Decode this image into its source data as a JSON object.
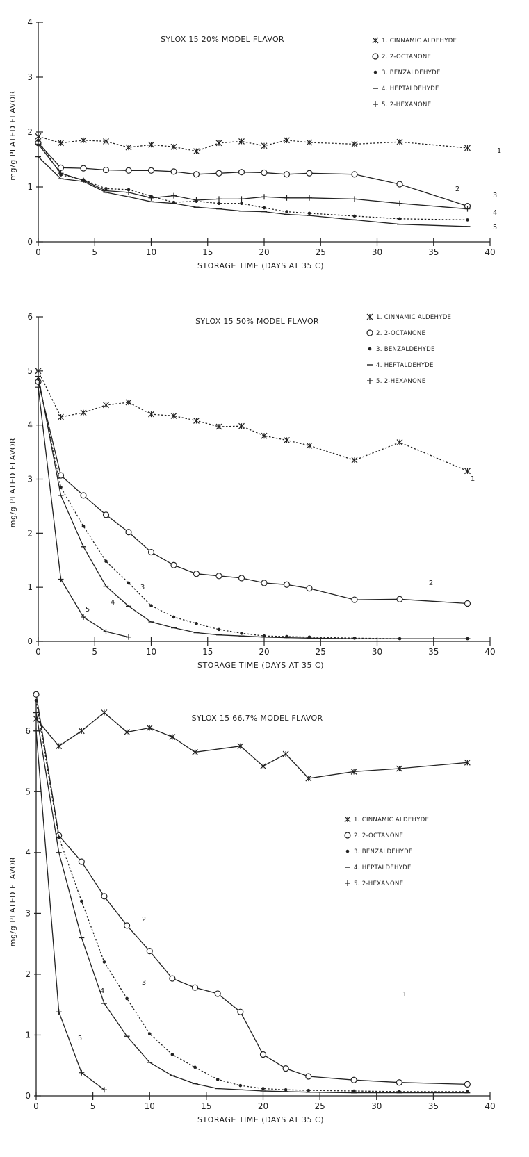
{
  "chart_data": [
    {
      "type": "line",
      "title": "SYLOX 15 20% MODEL FLAVOR",
      "xlabel": "STORAGE TIME (DAYS AT 35 C)",
      "ylabel": "mg/g PLATED FLAVOR",
      "xlim": [
        0,
        40
      ],
      "ylim": [
        0,
        4
      ],
      "xticks": [
        0,
        5,
        10,
        15,
        20,
        25,
        30,
        35,
        40
      ],
      "yticks": [
        0,
        1,
        2,
        3,
        4
      ],
      "grid": false,
      "legend_position": "top-right",
      "series": [
        {
          "name": "1. CINNAMIC ALDEHYDE",
          "marker": "*",
          "dash": "dotted",
          "label": "1",
          "x": [
            0,
            2,
            4,
            6,
            8,
            10,
            12,
            14,
            16,
            18,
            20,
            22,
            24,
            28,
            32,
            38
          ],
          "y": [
            1.92,
            1.8,
            1.85,
            1.83,
            1.72,
            1.77,
            1.73,
            1.65,
            1.8,
            1.83,
            1.75,
            1.85,
            1.81,
            1.78,
            1.82,
            1.71
          ]
        },
        {
          "name": "2. 2-OCTANONE",
          "marker": "o",
          "dash": "solid",
          "label": "2",
          "x": [
            0,
            2,
            4,
            6,
            8,
            10,
            12,
            14,
            16,
            18,
            20,
            22,
            24,
            28,
            32,
            38
          ],
          "y": [
            1.8,
            1.35,
            1.34,
            1.31,
            1.3,
            1.3,
            1.28,
            1.23,
            1.25,
            1.27,
            1.26,
            1.23,
            1.25,
            1.23,
            1.05,
            0.65
          ]
        },
        {
          "name": "3. BENZALDEHYDE",
          "marker": ".",
          "dash": "dotted",
          "label": "3",
          "x": [
            0,
            2,
            4,
            6,
            8,
            10,
            12,
            14,
            16,
            18,
            20,
            22,
            24,
            28,
            32,
            38
          ],
          "y": [
            1.85,
            1.22,
            1.13,
            0.97,
            0.95,
            0.83,
            0.72,
            0.74,
            0.7,
            0.7,
            0.62,
            0.55,
            0.52,
            0.47,
            0.42,
            0.4
          ]
        },
        {
          "name": "4. HEPTALDEHYDE",
          "marker": "-",
          "dash": "solid",
          "label": "4",
          "x": [
            0,
            2,
            4,
            6,
            8,
            10,
            12,
            14,
            16,
            18,
            20,
            22,
            24,
            28,
            32,
            38
          ],
          "y": [
            1.55,
            1.15,
            1.1,
            0.9,
            0.82,
            0.73,
            0.7,
            0.63,
            0.6,
            0.56,
            0.55,
            0.5,
            0.48,
            0.4,
            0.32,
            0.28
          ]
        },
        {
          "name": "5. 2-HEXANONE",
          "marker": "+",
          "dash": "solid",
          "label": "5",
          "x": [
            0,
            2,
            4,
            6,
            8,
            10,
            12,
            14,
            16,
            18,
            20,
            22,
            24,
            28,
            32,
            38
          ],
          "y": [
            1.78,
            1.25,
            1.12,
            0.93,
            0.9,
            0.8,
            0.84,
            0.76,
            0.78,
            0.78,
            0.82,
            0.8,
            0.8,
            0.78,
            0.7,
            0.6
          ]
        }
      ]
    },
    {
      "type": "line",
      "title": "SYLOX 15 50% MODEL FLAVOR",
      "xlabel": "STORAGE TIME (DAYS AT 35 C)",
      "ylabel": "mg/g PLATED FLAVOR",
      "xlim": [
        0,
        40
      ],
      "ylim": [
        0,
        6
      ],
      "xticks": [
        0,
        5,
        10,
        15,
        20,
        25,
        30,
        35,
        40
      ],
      "yticks": [
        0,
        1,
        2,
        3,
        4,
        5,
        6
      ],
      "grid": false,
      "legend_position": "top-right",
      "series": [
        {
          "name": "1. CINNAMIC ALDEHYDE",
          "marker": "*",
          "dash": "dotted",
          "label": "1",
          "x": [
            0,
            2,
            4,
            6,
            8,
            10,
            12,
            14,
            16,
            18,
            20,
            22,
            24,
            28,
            32,
            38
          ],
          "y": [
            5.0,
            4.15,
            4.23,
            4.37,
            4.42,
            4.2,
            4.17,
            4.08,
            3.97,
            3.98,
            3.8,
            3.72,
            3.62,
            3.35,
            3.68,
            3.15
          ]
        },
        {
          "name": "2. 2-OCTANONE",
          "marker": "o",
          "dash": "solid",
          "label": "2",
          "x": [
            0,
            2,
            4,
            6,
            8,
            10,
            12,
            14,
            16,
            18,
            20,
            22,
            24,
            28,
            32,
            38
          ],
          "y": [
            4.8,
            3.07,
            2.7,
            2.34,
            2.02,
            1.65,
            1.41,
            1.25,
            1.21,
            1.17,
            1.08,
            1.05,
            0.98,
            0.77,
            0.78,
            0.7
          ]
        },
        {
          "name": "3. BENZALDEHYDE",
          "marker": ".",
          "dash": "dotted",
          "label": "3",
          "x": [
            0,
            2,
            4,
            6,
            8,
            10,
            12,
            14,
            16,
            18,
            20,
            22,
            24,
            28,
            32,
            38
          ],
          "y": [
            4.85,
            2.85,
            2.13,
            1.48,
            1.08,
            0.66,
            0.45,
            0.33,
            0.22,
            0.15,
            0.1,
            0.09,
            0.08,
            0.06,
            0.05,
            0.05
          ]
        },
        {
          "name": "4. HEPTALDEHYDE",
          "marker": "-",
          "dash": "solid",
          "label": "4",
          "x": [
            0,
            2,
            4,
            6,
            8,
            10,
            12,
            14,
            16,
            18,
            20,
            22,
            24,
            28,
            32,
            38
          ],
          "y": [
            4.9,
            2.7,
            1.75,
            1.02,
            0.65,
            0.36,
            0.25,
            0.16,
            0.12,
            0.1,
            0.08,
            0.07,
            0.06,
            0.05,
            0.05,
            0.05
          ]
        },
        {
          "name": "5. 2-HEXANONE",
          "marker": "+",
          "dash": "solid",
          "label": "5",
          "x": [
            0,
            2,
            4,
            6,
            8
          ],
          "y": [
            4.7,
            1.15,
            0.45,
            0.18,
            0.08
          ]
        }
      ]
    },
    {
      "type": "line",
      "title": "SYLOX 15 66.7% MODEL FLAVOR",
      "xlabel": "STORAGE TIME (DAYS AT 35 C)",
      "ylabel": "mg/g PLATED FLAVOR",
      "xlim": [
        0,
        40
      ],
      "ylim": [
        0,
        6.5
      ],
      "xticks": [
        0,
        5,
        10,
        15,
        20,
        25,
        30,
        35,
        40
      ],
      "yticks": [
        0,
        1,
        2,
        3,
        4,
        5,
        6
      ],
      "grid": false,
      "legend_position": "middle-right",
      "series": [
        {
          "name": "1. CINNAMIC ALDEHYDE",
          "marker": "*",
          "dash": "solid",
          "label": "1",
          "x": [
            0,
            2,
            4,
            6,
            8,
            10,
            12,
            14,
            18,
            20,
            22,
            24,
            28,
            32,
            38
          ],
          "y": [
            6.2,
            5.75,
            6.0,
            6.3,
            5.98,
            6.05,
            5.9,
            5.65,
            5.75,
            5.42,
            5.62,
            5.22,
            5.33,
            5.38,
            5.48
          ]
        },
        {
          "name": "2. 2-OCTANONE",
          "marker": "o",
          "dash": "solid",
          "label": "2",
          "x": [
            0,
            2,
            4,
            6,
            8,
            10,
            12,
            14,
            16,
            18,
            20,
            22,
            24,
            28,
            32,
            38
          ],
          "y": [
            6.6,
            4.28,
            3.85,
            3.28,
            2.8,
            2.38,
            1.93,
            1.78,
            1.68,
            1.38,
            0.68,
            0.45,
            0.32,
            0.26,
            0.22,
            0.19
          ]
        },
        {
          "name": "3. BENZALDEHYDE",
          "marker": ".",
          "dash": "dotted",
          "label": "3",
          "x": [
            0,
            2,
            4,
            6,
            8,
            10,
            12,
            14,
            16,
            18,
            20,
            22,
            24,
            28,
            32,
            38
          ],
          "y": [
            6.5,
            4.25,
            3.2,
            2.2,
            1.6,
            1.02,
            0.68,
            0.47,
            0.27,
            0.17,
            0.12,
            0.1,
            0.09,
            0.08,
            0.07,
            0.07
          ]
        },
        {
          "name": "4. HEPTALDEHYDE",
          "marker": "-",
          "dash": "solid",
          "label": "4",
          "x": [
            0,
            2,
            4,
            6,
            8,
            10,
            12,
            14,
            16,
            18,
            20,
            22,
            24,
            28,
            32,
            38
          ],
          "y": [
            6.3,
            4.0,
            2.6,
            1.52,
            0.98,
            0.55,
            0.33,
            0.2,
            0.12,
            0.1,
            0.08,
            0.07,
            0.06,
            0.05,
            0.05,
            0.05
          ]
        },
        {
          "name": "5. 2-HEXANONE",
          "marker": "+",
          "dash": "solid",
          "label": "5",
          "x": [
            0,
            2,
            4,
            6
          ],
          "y": [
            6.0,
            1.38,
            0.38,
            0.1
          ]
        }
      ]
    }
  ]
}
